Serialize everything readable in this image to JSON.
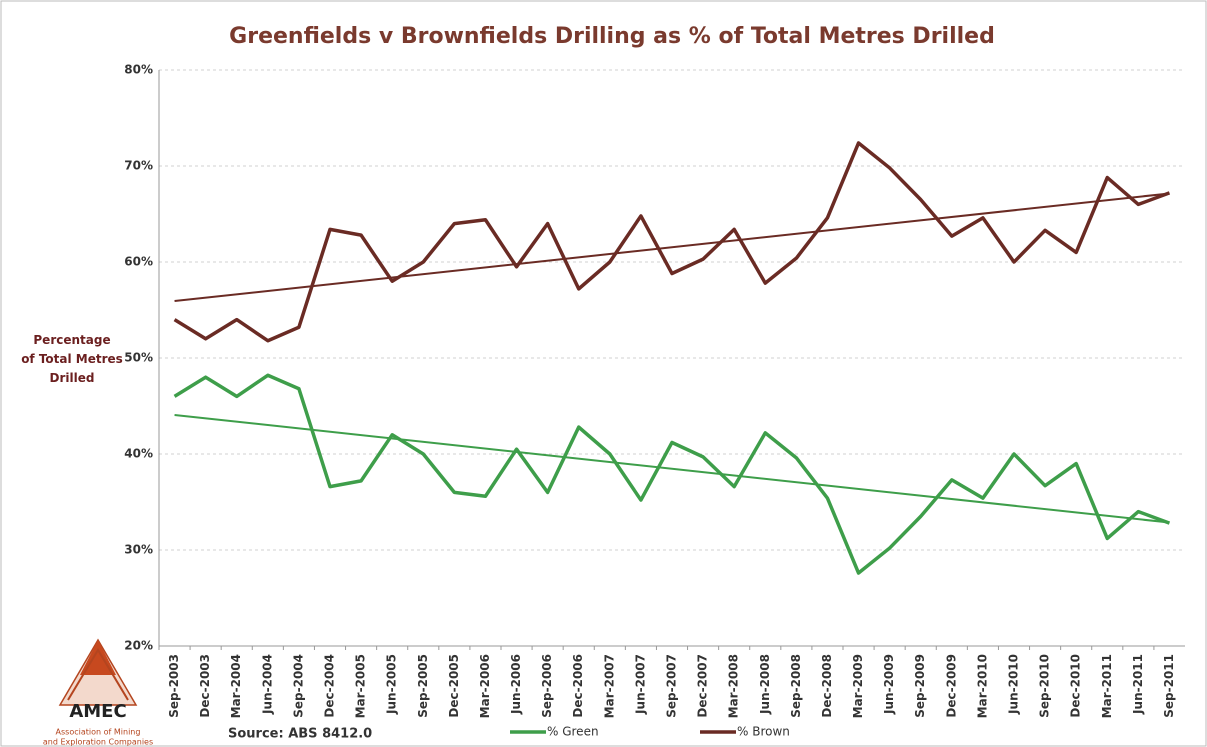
{
  "chart_data": {
    "type": "line",
    "title": "Greenfields v Brownfields Drilling as % of Total Metres Drilled",
    "ylabel": [
      "Percentage",
      "of Total Metres",
      "Drilled"
    ],
    "categories": [
      "Sep-2003",
      "Dec-2003",
      "Mar-2004",
      "Jun-2004",
      "Sep-2004",
      "Dec-2004",
      "Mar-2005",
      "Jun-2005",
      "Sep-2005",
      "Dec-2005",
      "Mar-2006",
      "Jun-2006",
      "Sep-2006",
      "Dec-2006",
      "Mar-2007",
      "Jun-2007",
      "Sep-2007",
      "Dec-2007",
      "Mar-2008",
      "Jun-2008",
      "Sep-2008",
      "Dec-2008",
      "Mar-2009",
      "Jun-2009",
      "Sep-2009",
      "Dec-2009",
      "Mar-2010",
      "Jun-2010",
      "Sep-2010",
      "Dec-2010",
      "Mar-2011",
      "Jun-2011",
      "Sep-2011"
    ],
    "series": [
      {
        "name": "% Green",
        "color": "#3e9e4a",
        "trendline": true,
        "values": [
          46,
          48,
          46,
          48.2,
          46.8,
          36.6,
          37.2,
          42,
          40,
          36,
          35.6,
          40.5,
          36,
          42.8,
          40,
          35.2,
          41.2,
          39.7,
          36.6,
          42.2,
          39.6,
          35.4,
          27.6,
          30.2,
          33.5,
          37.3,
          35.4,
          40,
          36.7,
          39,
          31.2,
          34,
          32.8
        ]
      },
      {
        "name": "% Brown",
        "color": "#6a2b24",
        "trendline": true,
        "values": [
          54,
          52,
          54,
          51.8,
          53.2,
          63.4,
          62.8,
          58,
          60,
          64,
          64.4,
          59.5,
          64,
          57.2,
          60,
          64.8,
          58.8,
          60.3,
          63.4,
          57.8,
          60.4,
          64.6,
          72.4,
          69.8,
          66.5,
          62.7,
          64.6,
          60,
          63.3,
          61,
          68.8,
          66,
          67.2
        ]
      }
    ],
    "ylim": [
      20,
      80
    ],
    "yticks": [
      {
        "value": 20,
        "label": "20%"
      },
      {
        "value": 30,
        "label": "30%"
      },
      {
        "value": 40,
        "label": "40%"
      },
      {
        "value": 50,
        "label": "50%"
      },
      {
        "value": 60,
        "label": "60%"
      },
      {
        "value": 70,
        "label": "70%"
      },
      {
        "value": 80,
        "label": "80%"
      }
    ],
    "grid": true,
    "legend": "bottom",
    "source": "Source: ABS 8412.0",
    "logo": {
      "name": "AMEC",
      "subtitle": [
        "Association of Mining",
        "and Exploration Companies"
      ]
    }
  }
}
